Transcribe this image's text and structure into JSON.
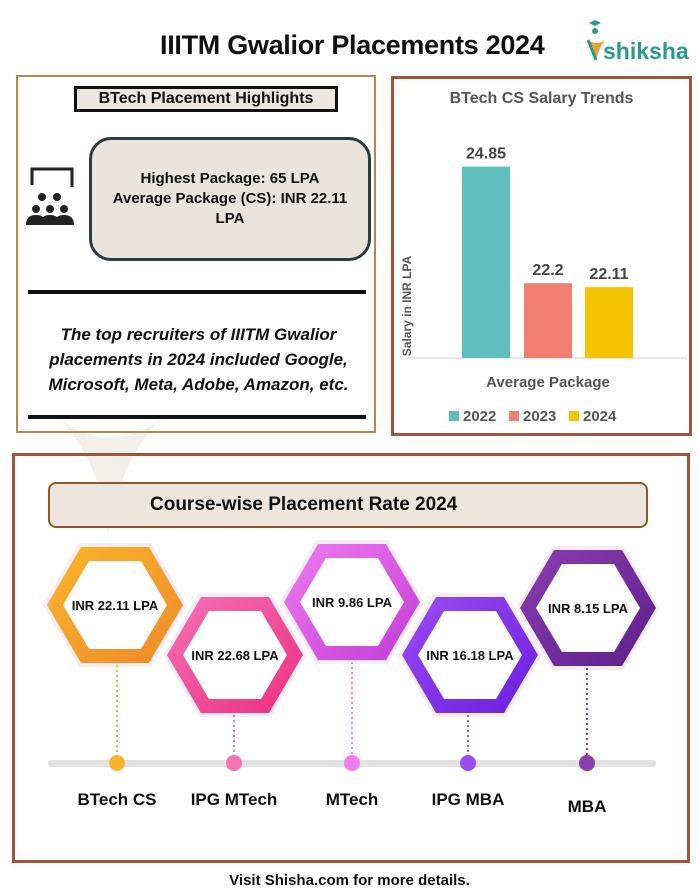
{
  "header": {
    "title": "IIITM Gwalior Placements 2024",
    "logo_text": "shiksha"
  },
  "highlights": {
    "title": "BTech Placement Highlights",
    "icon": "audience-presentation-icon",
    "lines": [
      "Highest Package: 65 LPA",
      "Average Package (CS): INR 22.11",
      "LPA"
    ],
    "recruiters_text": "The top recruiters of IIITM Gwalior placements in 2024 included Google, Microsoft, Meta, Adobe, Amazon, etc."
  },
  "chart_data": {
    "type": "bar",
    "title": "BTech CS Salary Trends",
    "ylabel": "Salary in INR LPA",
    "xlabel": "Average Package",
    "categories": [
      "Average Package"
    ],
    "series": [
      {
        "name": "2022",
        "values": [
          24.85
        ],
        "color": "#5fbfbf"
      },
      {
        "name": "2023",
        "values": [
          22.2
        ],
        "color": "#f07f72"
      },
      {
        "name": "2024",
        "values": [
          22.11
        ],
        "color": "#f5c400"
      }
    ],
    "data_labels": [
      "24.85",
      "22.2",
      "22.11"
    ],
    "ylim": [
      20.5,
      25
    ],
    "grid": false,
    "legend": "bottom"
  },
  "course_section": {
    "title": "Course-wise Placement Rate 2024",
    "courses": [
      {
        "name": "BTech CS",
        "value": "INR 22.11 LPA",
        "colors": [
          "#f9b52a",
          "#f08a2a"
        ]
      },
      {
        "name": "IPG MTech",
        "value": "INR 22.68 LPA",
        "colors": [
          "#f472b6",
          "#ec2f7f"
        ]
      },
      {
        "name": "MTech",
        "value": "INR 9.86 LPA",
        "colors": [
          "#f07cf0",
          "#c23bd6"
        ]
      },
      {
        "name": "IPG MBA",
        "value": "INR 16.18 LPA",
        "colors": [
          "#9b4cf0",
          "#6a1ee0"
        ]
      },
      {
        "name": "MBA",
        "value": "INR 8.15 LPA",
        "colors": [
          "#8e3db0",
          "#5b1f8a"
        ]
      }
    ]
  },
  "footer": {
    "text": "Visit Shisha.com for more details."
  }
}
